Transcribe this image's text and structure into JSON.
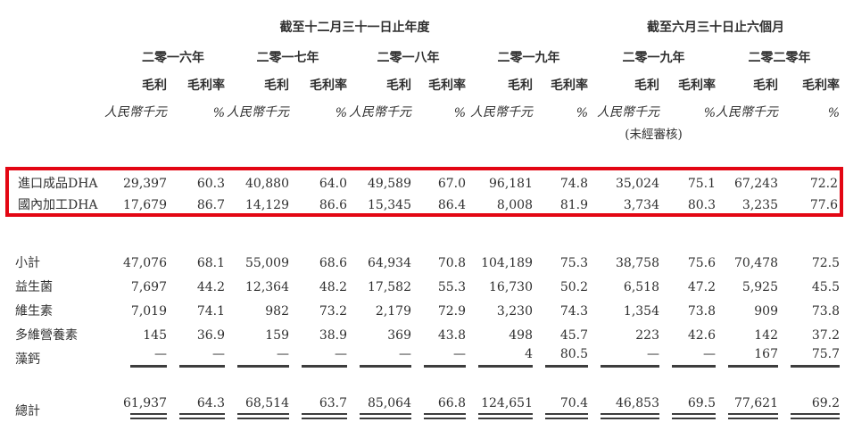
{
  "table": {
    "highlight_box_color": "#e30613",
    "period_headers": [
      {
        "label": "截至十二月三十一日止年度"
      },
      {
        "label": "截至六月三十日止六個月"
      }
    ],
    "groups": [
      {
        "year": "二零一六年",
        "metric1": "毛利",
        "metric2": "毛利率",
        "unit1": "人民幣千元",
        "unit2": "%",
        "note": ""
      },
      {
        "year": "二零一七年",
        "metric1": "毛利",
        "metric2": "毛利率",
        "unit1": "人民幣千元",
        "unit2": "%",
        "note": ""
      },
      {
        "year": "二零一八年",
        "metric1": "毛利",
        "metric2": "毛利率",
        "unit1": "人民幣千元",
        "unit2": "%",
        "note": ""
      },
      {
        "year": "二零一九年",
        "metric1": "毛利",
        "metric2": "毛利率",
        "unit1": "人民幣千元",
        "unit2": "%",
        "note": ""
      },
      {
        "year": "二零一九年",
        "metric1": "毛利",
        "metric2": "毛利率",
        "unit1": "人民幣千元",
        "unit2": "%",
        "note": "(未經審核)"
      },
      {
        "year": "二零二零年",
        "metric1": "毛利",
        "metric2": "毛利率",
        "unit1": "人民幣千元",
        "unit2": "%",
        "note": ""
      }
    ],
    "rows": [
      {
        "label": "進口成品DHA",
        "section": "highlight",
        "rule": null,
        "values": [
          "29,397",
          "60.3",
          "40,880",
          "64.0",
          "49,589",
          "67.0",
          "96,181",
          "74.8",
          "35,024",
          "75.1",
          "67,243",
          "72.2"
        ]
      },
      {
        "label": "國內加工DHA",
        "section": "highlight",
        "rule": null,
        "values": [
          "17,679",
          "86.7",
          "14,129",
          "86.6",
          "15,345",
          "86.4",
          "8,008",
          "81.9",
          "3,734",
          "80.3",
          "3,235",
          "77.6"
        ]
      },
      {
        "label": "小計",
        "section": "main",
        "rule": null,
        "values": [
          "47,076",
          "68.1",
          "55,009",
          "68.6",
          "64,934",
          "70.8",
          "104,189",
          "75.3",
          "38,758",
          "75.6",
          "70,478",
          "72.5"
        ]
      },
      {
        "label": "益生菌",
        "section": "main",
        "rule": null,
        "values": [
          "7,697",
          "44.2",
          "12,364",
          "48.2",
          "17,582",
          "55.3",
          "16,730",
          "50.2",
          "6,518",
          "47.2",
          "5,925",
          "45.5"
        ]
      },
      {
        "label": "維生素",
        "section": "main",
        "rule": null,
        "values": [
          "7,019",
          "74.1",
          "982",
          "73.2",
          "2,179",
          "72.9",
          "3,230",
          "74.3",
          "1,354",
          "73.8",
          "909",
          "73.8"
        ]
      },
      {
        "label": "多維營養素",
        "section": "main",
        "rule": null,
        "values": [
          "145",
          "36.9",
          "159",
          "38.9",
          "369",
          "43.8",
          "498",
          "45.7",
          "223",
          "42.6",
          "142",
          "37.2"
        ]
      },
      {
        "label": "藻鈣",
        "section": "main",
        "rule": "single",
        "values": [
          "—",
          "—",
          "—",
          "—",
          "—",
          "—",
          "4",
          "80.5",
          "—",
          "—",
          "167",
          "75.7"
        ]
      },
      {
        "label": "總計",
        "section": "total",
        "rule": "double",
        "values": [
          "61,937",
          "64.3",
          "68,514",
          "63.7",
          "85,064",
          "66.8",
          "124,651",
          "70.4",
          "46,853",
          "69.5",
          "77,621",
          "69.2"
        ]
      }
    ]
  }
}
